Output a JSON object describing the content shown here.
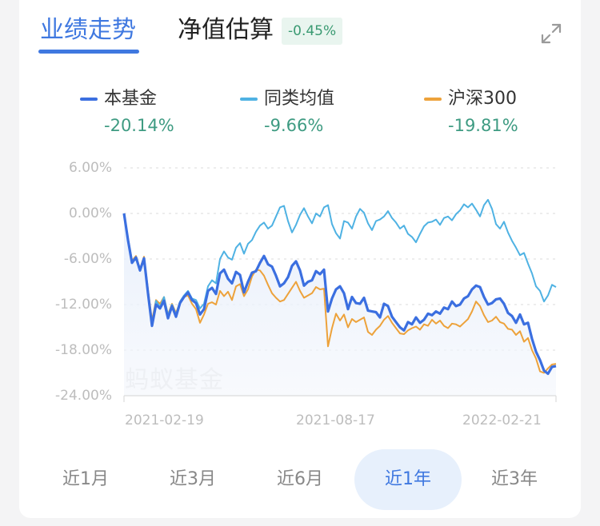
{
  "header": {
    "tabs": [
      {
        "label": "业绩走势",
        "active": true
      },
      {
        "label": "净值估算",
        "active": false
      }
    ],
    "estimate_badge": "-0.45%",
    "expand_icon": "expand-icon"
  },
  "legend": [
    {
      "name": "本基金",
      "value": "-20.14%",
      "color": "#3b6fe0"
    },
    {
      "name": "同类均值",
      "value": "-9.66%",
      "color": "#4fb2e3"
    },
    {
      "name": "沪深300",
      "value": "-19.81%",
      "color": "#eda23b"
    }
  ],
  "axis": {
    "y_ticks": [
      "6.00%",
      "0.00%",
      "-6.00%",
      "-12.00%",
      "-18.00%",
      "-24.00%"
    ],
    "x_ticks": [
      "2021-02-19",
      "2021-08-17",
      "2022-02-21"
    ]
  },
  "watermark": "蚂蚁基金",
  "ranges": [
    {
      "label": "近1月",
      "active": false
    },
    {
      "label": "近3月",
      "active": false
    },
    {
      "label": "近6月",
      "active": false
    },
    {
      "label": "近1年",
      "active": true
    },
    {
      "label": "近3年",
      "active": false
    }
  ],
  "chart_data": {
    "type": "line",
    "title": "业绩走势",
    "xlabel": "",
    "ylabel": "",
    "ylim": [
      -24,
      6
    ],
    "y_ticks": [
      6,
      0,
      -6,
      -12,
      -18,
      -24
    ],
    "x_tick_labels": [
      "2021-02-19",
      "2021-08-17",
      "2022-02-21"
    ],
    "x_range": [
      "2021-02-19",
      "2022-02-21"
    ],
    "grid": true,
    "legend_position": "top",
    "x": [
      0,
      1,
      2,
      3,
      4,
      5,
      6,
      7,
      8,
      9,
      10,
      11,
      12,
      13,
      14,
      15,
      16,
      17,
      18,
      19,
      20,
      21,
      22,
      23,
      24,
      25,
      26,
      27,
      28,
      29,
      30,
      31,
      32,
      33,
      34,
      35,
      36,
      37,
      38,
      39,
      40,
      41,
      42,
      43,
      44,
      45,
      46,
      47,
      48,
      49,
      50,
      51,
      52,
      53,
      54,
      55,
      56,
      57,
      58,
      59,
      60,
      61,
      62,
      63,
      64,
      65,
      66,
      67,
      68,
      69,
      70,
      71,
      72,
      73,
      74,
      75,
      76,
      77,
      78,
      79,
      80,
      81,
      82,
      83,
      84,
      85,
      86,
      87,
      88,
      89,
      90,
      91,
      92,
      93,
      94,
      95,
      96,
      97,
      98,
      99,
      100,
      101,
      102,
      103,
      104,
      105,
      106,
      107,
      108
    ],
    "series": [
      {
        "name": "本基金",
        "color": "#3b6fe0",
        "final": -20.14,
        "values": [
          0,
          -3.5,
          -6.5,
          -5.8,
          -7.5,
          -5.9,
          -10.5,
          -14.8,
          -12.0,
          -12.5,
          -11.5,
          -13.8,
          -12.2,
          -13.6,
          -11.8,
          -11.0,
          -10.4,
          -11.4,
          -11.8,
          -13.3,
          -12.6,
          -10.2,
          -9.8,
          -10.6,
          -7.9,
          -7.4,
          -8.6,
          -9.2,
          -7.7,
          -8.1,
          -10.4,
          -9.0,
          -7.8,
          -7.6,
          -6.5,
          -5.6,
          -6.7,
          -7.0,
          -8.2,
          -9.6,
          -9.2,
          -8.4,
          -6.9,
          -6.3,
          -7.5,
          -9.5,
          -9.0,
          -8.8,
          -7.6,
          -8.0,
          -7.4,
          -12.9,
          -11.2,
          -10.0,
          -9.6,
          -10.5,
          -12.6,
          -11.0,
          -11.8,
          -11.9,
          -11.1,
          -12.8,
          -12.9,
          -13.0,
          -13.7,
          -11.9,
          -12.2,
          -13.6,
          -14.3,
          -15.0,
          -15.4,
          -14.3,
          -14.6,
          -13.7,
          -14.4,
          -14.0,
          -13.2,
          -13.4,
          -12.9,
          -13.2,
          -12.4,
          -12.6,
          -11.6,
          -12.2,
          -12.0,
          -11.2,
          -10.9,
          -10.0,
          -9.5,
          -9.7,
          -11.0,
          -12.0,
          -11.8,
          -11.3,
          -11.2,
          -11.9,
          -13.1,
          -13.5,
          -14.4,
          -13.3,
          -14.6,
          -14.4,
          -16.5,
          -18.2,
          -19.3,
          -20.7,
          -21.1,
          -20.2,
          -20.1
        ]
      },
      {
        "name": "同类均值",
        "color": "#4fb2e3",
        "final": -9.66,
        "values": [
          0,
          -3.4,
          -6.3,
          -6.0,
          -7.3,
          -6.0,
          -10.2,
          -14.5,
          -11.5,
          -12.3,
          -11.0,
          -13.4,
          -12.0,
          -13.3,
          -11.6,
          -10.8,
          -10.2,
          -11.2,
          -11.4,
          -12.5,
          -11.9,
          -9.6,
          -8.8,
          -9.2,
          -6.0,
          -5.0,
          -5.8,
          -6.1,
          -4.5,
          -3.9,
          -5.3,
          -4.0,
          -3.5,
          -2.4,
          -1.6,
          -1.2,
          -2.0,
          -1.6,
          -0.4,
          0.8,
          1.0,
          -1.0,
          -2.5,
          -1.5,
          -0.2,
          0.7,
          -0.4,
          -1.3,
          0.0,
          -0.4,
          0.8,
          1.1,
          -1.4,
          -2.6,
          -3.3,
          -1.0,
          -1.2,
          -2.0,
          -0.4,
          0.6,
          0.1,
          -1.3,
          -2.2,
          -1.0,
          -0.8,
          -0.4,
          0.3,
          -0.6,
          -1.2,
          -2.0,
          -1.6,
          -2.7,
          -3.1,
          -3.8,
          -2.7,
          -1.7,
          -1.2,
          -1.1,
          -0.8,
          -1.5,
          -0.6,
          -0.4,
          -0.9,
          -0.1,
          0.4,
          1.2,
          0.8,
          1.3,
          0.5,
          -0.4,
          1.1,
          1.8,
          0.6,
          -1.4,
          -2.0,
          -1.1,
          -2.5,
          -3.6,
          -4.5,
          -5.5,
          -5.2,
          -6.6,
          -7.9,
          -9.6,
          -10.2,
          -11.6,
          -10.8,
          -9.4,
          -9.7
        ]
      },
      {
        "name": "沪深300",
        "color": "#eda23b",
        "final": -19.81,
        "values": [
          0,
          -3.3,
          -6.2,
          -5.6,
          -7.3,
          -5.7,
          -10.0,
          -14.1,
          -11.4,
          -11.9,
          -11.0,
          -13.3,
          -11.9,
          -13.1,
          -11.7,
          -11.0,
          -10.8,
          -11.9,
          -12.6,
          -14.4,
          -13.3,
          -11.9,
          -11.7,
          -12.0,
          -10.2,
          -10.9,
          -10.3,
          -11.4,
          -9.6,
          -9.3,
          -10.9,
          -10.0,
          -8.3,
          -7.4,
          -7.5,
          -8.2,
          -9.4,
          -10.5,
          -11.1,
          -11.6,
          -11.4,
          -10.6,
          -9.8,
          -9.0,
          -10.2,
          -11.1,
          -10.8,
          -10.5,
          -9.7,
          -10.0,
          -9.9,
          -17.5,
          -15.1,
          -13.2,
          -14.1,
          -13.3,
          -15.0,
          -13.9,
          -14.3,
          -14.0,
          -13.7,
          -15.6,
          -16.0,
          -15.3,
          -14.8,
          -14.0,
          -13.5,
          -14.4,
          -15.1,
          -15.8,
          -15.9,
          -15.4,
          -15.1,
          -14.9,
          -15.3,
          -14.6,
          -14.8,
          -14.0,
          -14.5,
          -14.1,
          -14.8,
          -15.1,
          -14.5,
          -14.6,
          -14.9,
          -14.4,
          -13.9,
          -12.9,
          -11.6,
          -12.2,
          -13.4,
          -14.3,
          -14.1,
          -13.6,
          -14.3,
          -14.5,
          -15.2,
          -15.3,
          -16.0,
          -15.5,
          -16.9,
          -16.4,
          -18.0,
          -19.1,
          -20.8,
          -21.0,
          -20.4,
          -19.9,
          -19.8
        ]
      }
    ]
  }
}
